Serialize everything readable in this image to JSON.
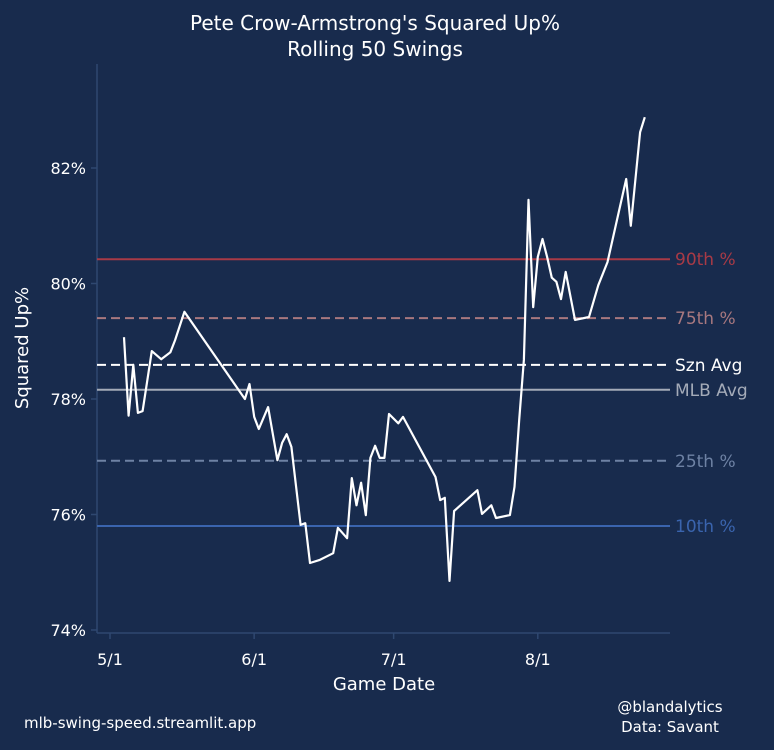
{
  "chart_data": {
    "type": "line",
    "title": "Pete Crow-Armstrong's Squared Up%",
    "subtitle": "Rolling 50 Swings",
    "xlabel": "Game Date",
    "ylabel": "Squared Up%",
    "ylim": [
      73.95,
      83.3
    ],
    "xlim": [
      "05-01",
      "08-31"
    ],
    "yticks": [
      74,
      76,
      78,
      80,
      82
    ],
    "ytick_labels": [
      "74%",
      "76%",
      "78%",
      "80%",
      "82%"
    ],
    "xticks": [
      "05-01",
      "06-01",
      "07-01",
      "08-01"
    ],
    "xtick_labels": [
      "5/1",
      "6/1",
      "7/1",
      "8/1"
    ],
    "grid": false,
    "series": [
      {
        "color": "#ffffff",
        "points": [
          [
            "05-04",
            79.07
          ],
          [
            "05-05",
            77.71
          ],
          [
            "05-06",
            78.59
          ],
          [
            "05-06",
            78.59
          ],
          [
            "05-07",
            77.76
          ],
          [
            "05-08",
            77.79
          ],
          [
            "05-10",
            78.83
          ],
          [
            "05-12",
            78.69
          ],
          [
            "05-14",
            78.81
          ],
          [
            "05-15",
            79.02
          ],
          [
            "05-17",
            79.51
          ],
          [
            "05-30",
            78.0
          ],
          [
            "05-31",
            78.26
          ],
          [
            "06-01",
            77.69
          ],
          [
            "06-02",
            77.48
          ],
          [
            "06-04",
            77.86
          ],
          [
            "06-06",
            76.94
          ],
          [
            "06-07",
            77.24
          ],
          [
            "06-08",
            77.39
          ],
          [
            "06-09",
            77.17
          ],
          [
            "06-11",
            75.82
          ],
          [
            "06-12",
            75.85
          ],
          [
            "06-13",
            75.16
          ],
          [
            "06-15",
            75.21
          ],
          [
            "06-18",
            75.33
          ],
          [
            "06-19",
            75.77
          ],
          [
            "06-21",
            75.59
          ],
          [
            "06-22",
            76.63
          ],
          [
            "06-23",
            76.16
          ],
          [
            "06-24",
            76.55
          ],
          [
            "06-25",
            75.99
          ],
          [
            "06-26",
            76.98
          ],
          [
            "06-27",
            77.19
          ],
          [
            "06-28",
            76.98
          ],
          [
            "06-29",
            76.98
          ],
          [
            "06-30",
            77.74
          ],
          [
            "07-02",
            77.58
          ],
          [
            "07-03",
            77.69
          ],
          [
            "07-10",
            76.65
          ],
          [
            "07-11",
            76.25
          ],
          [
            "07-12",
            76.29
          ],
          [
            "07-13",
            74.85
          ],
          [
            "07-14",
            76.06
          ],
          [
            "07-19",
            76.42
          ],
          [
            "07-20",
            76.01
          ],
          [
            "07-22",
            76.16
          ],
          [
            "07-23",
            75.94
          ],
          [
            "07-26",
            75.99
          ],
          [
            "07-27",
            76.48
          ],
          [
            "07-28",
            77.64
          ],
          [
            "07-29",
            78.68
          ],
          [
            "07-30",
            81.45
          ],
          [
            "07-31",
            79.59
          ],
          [
            "08-01",
            80.46
          ],
          [
            "08-02",
            80.77
          ],
          [
            "08-03",
            80.46
          ],
          [
            "08-04",
            80.1
          ],
          [
            "08-05",
            80.03
          ],
          [
            "08-06",
            79.73
          ],
          [
            "08-07",
            80.2
          ],
          [
            "08-09",
            79.37
          ],
          [
            "08-12",
            79.42
          ],
          [
            "08-14",
            79.97
          ],
          [
            "08-16",
            80.37
          ],
          [
            "08-20",
            81.81
          ],
          [
            "08-21",
            81.0
          ],
          [
            "08-23",
            82.62
          ],
          [
            "08-24",
            82.88
          ]
        ]
      }
    ],
    "reference_lines": [
      {
        "label": "90th %",
        "value": 80.42,
        "color": "#a83a46",
        "style": "solid"
      },
      {
        "label": "75th %",
        "value": 79.4,
        "color": "#a8787f",
        "style": "dashed"
      },
      {
        "label": "Szn Avg",
        "value": 78.59,
        "color": "#ffffff",
        "style": "dashed"
      },
      {
        "label": "MLB Avg",
        "value": 78.16,
        "color": "#a4abb8",
        "style": "solid"
      },
      {
        "label": "25th %",
        "value": 76.93,
        "color": "#6e82a4",
        "style": "dashed"
      },
      {
        "label": "10th %",
        "value": 75.8,
        "color": "#3a64ae",
        "style": "solid"
      }
    ]
  },
  "footer": {
    "site": "mlb-swing-speed.streamlit.app",
    "credit_handle": "@blandalytics",
    "credit_source": "Data: Savant"
  },
  "colors": {
    "background": "#182b4d",
    "spine": "#2f4870",
    "text": "#ffffff"
  }
}
